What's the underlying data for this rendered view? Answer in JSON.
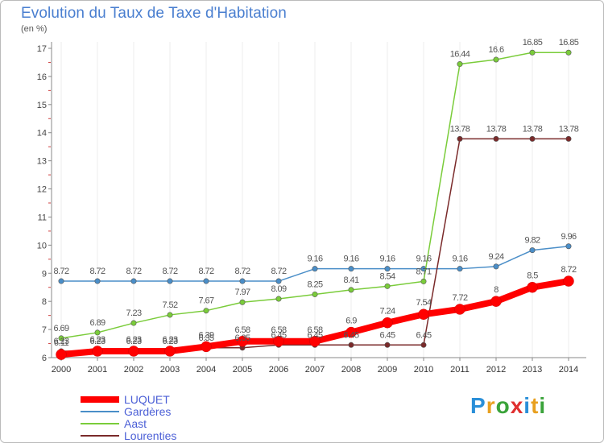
{
  "title": "Evolution du Taux de Taxe d'Habitation",
  "subtitle": "(en %)",
  "logo": {
    "text": "Proxiti",
    "colors": [
      "#2a8fd8",
      "#e8a020",
      "#3aa33a",
      "#e03030",
      "#2a8fd8",
      "#e8a020",
      "#3aa33a"
    ]
  },
  "chart_data": {
    "type": "line",
    "x": [
      2000,
      2001,
      2002,
      2003,
      2004,
      2005,
      2006,
      2007,
      2008,
      2009,
      2010,
      2011,
      2012,
      2013,
      2014
    ],
    "ylim": [
      6,
      17
    ],
    "yticks": [
      6,
      7,
      8,
      9,
      10,
      11,
      12,
      13,
      14,
      15,
      16,
      17
    ],
    "series": [
      {
        "name": "LUQUET",
        "color": "#ff0000",
        "values": [
          6.11,
          6.23,
          6.23,
          6.23,
          6.39,
          6.58,
          6.58,
          6.58,
          6.9,
          7.24,
          7.54,
          7.72,
          8,
          8.5,
          8.72
        ],
        "labels": [
          "6.11",
          "6.23",
          "6.23",
          "6.23",
          "6.39",
          "6.58",
          "6.58",
          "6.58",
          "6.9",
          "7.24",
          "7.54",
          "7.72",
          "8",
          "8.5",
          "8.72"
        ]
      },
      {
        "name": "Gardères",
        "color": "#4a8ec8",
        "values": [
          8.72,
          8.72,
          8.72,
          8.72,
          8.72,
          8.72,
          8.72,
          9.16,
          9.16,
          9.16,
          9.16,
          9.16,
          9.24,
          9.82,
          9.96
        ],
        "labels": [
          "8.72",
          "8.72",
          "8.72",
          "8.72",
          "8.72",
          "8.72",
          "8.72",
          "9.16",
          "9.16",
          "9.16",
          "9.16",
          "9.16",
          "9.24",
          "9.82",
          "9.96"
        ]
      },
      {
        "name": "Aast",
        "color": "#7acc3a",
        "values": [
          6.69,
          6.89,
          7.23,
          7.52,
          7.67,
          7.97,
          8.09,
          8.25,
          8.41,
          8.54,
          8.71,
          16.44,
          16.6,
          16.85,
          16.85
        ],
        "labels": [
          "6.69",
          "6.89",
          "7.23",
          "7.52",
          "7.67",
          "7.97",
          "8.09",
          "8.25",
          "8.41",
          "8.54",
          "8.71",
          "16.44",
          "16.6",
          "16.85",
          "16.85"
        ]
      },
      {
        "name": "Lourenties",
        "color": "#7a2a2a",
        "values": [
          6.23,
          6.23,
          6.23,
          6.23,
          6.35,
          6.35,
          6.45,
          6.45,
          6.45,
          6.45,
          6.45,
          13.78,
          13.78,
          13.78,
          13.78
        ],
        "labels": [
          "6.23",
          "6.23",
          "6.23",
          "6.23",
          "6.35",
          "6.35",
          "6.45",
          "6.45",
          "6.45",
          "6.45",
          "6.45",
          "13.78",
          "13.78",
          "13.78",
          "13.78"
        ]
      }
    ]
  }
}
